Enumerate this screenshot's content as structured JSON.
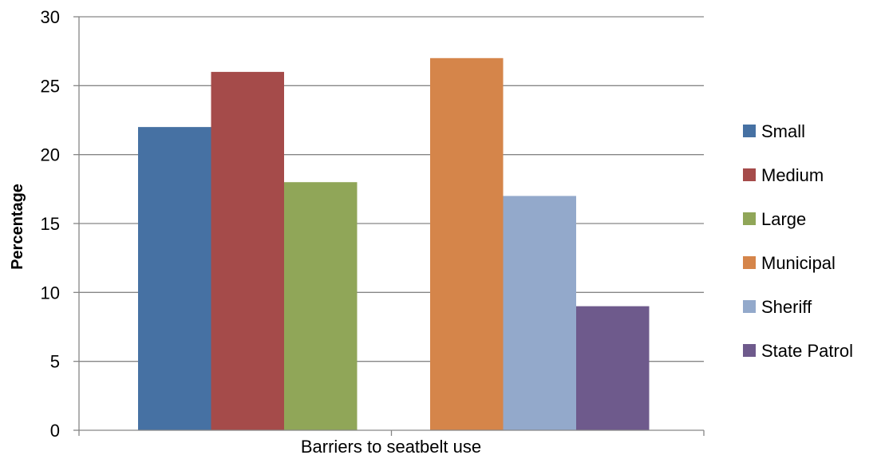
{
  "chart_data": {
    "type": "bar",
    "title": "",
    "xlabel": "Barriers to seatbelt use",
    "ylabel": "Percentage",
    "ylim": [
      0,
      30
    ],
    "yticks": [
      0,
      5,
      10,
      15,
      20,
      25,
      30
    ],
    "grid": true,
    "legend_position": "right",
    "groups": [
      {
        "series": [
          {
            "name": "Small",
            "value": 22,
            "color": "#4671A3"
          },
          {
            "name": "Medium",
            "value": 26,
            "color": "#A54B4A"
          },
          {
            "name": "Large",
            "value": 18,
            "color": "#90A658"
          }
        ]
      },
      {
        "series": [
          {
            "name": "Municipal",
            "value": 27,
            "color": "#D5854A"
          },
          {
            "name": "Sheriff",
            "value": 17,
            "color": "#93A9CB"
          },
          {
            "name": "State Patrol",
            "value": 9,
            "color": "#6E5A8C"
          }
        ]
      }
    ]
  }
}
